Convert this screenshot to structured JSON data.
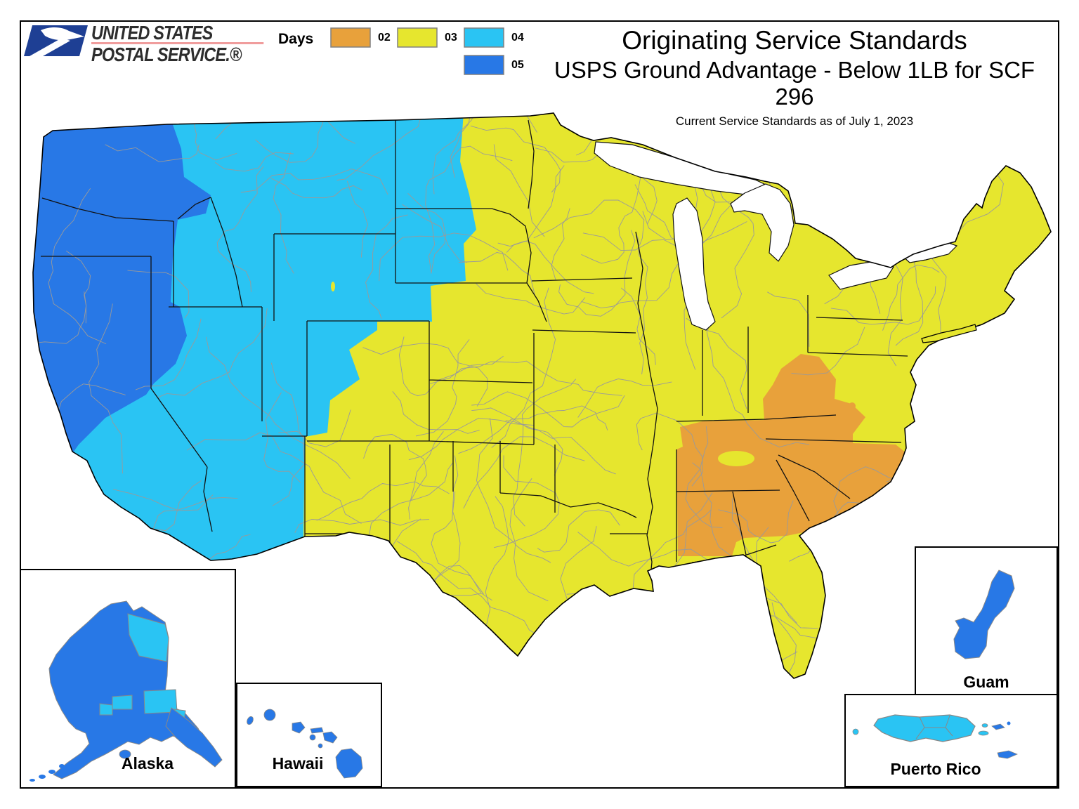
{
  "logo": {
    "line1": "UNITED STATES",
    "line2": "POSTAL SERVICE.®"
  },
  "header": {
    "title": "Originating Service Standards",
    "subtitle": "USPS Ground Advantage - Below 1LB for SCF 296",
    "date_note": "Current Service Standards as of July 1, 2023"
  },
  "legend": {
    "title": "Days",
    "items": [
      {
        "label": "02",
        "color": "#E8A13B"
      },
      {
        "label": "03",
        "color": "#E6E62E"
      },
      {
        "label": "04",
        "color": "#2AC4F3"
      },
      {
        "label": "05",
        "color": "#2878E6"
      }
    ]
  },
  "map": {
    "colors": {
      "day02_orange": "#E8A13B",
      "day03_yellow": "#E6E62E",
      "day04_cyan": "#2AC4F3",
      "day05_blue": "#2878E6",
      "zip3_boundary_gray": "#9A9A9A",
      "state_boundary_black": "#111111"
    }
  },
  "insets": {
    "alaska": {
      "label": "Alaska"
    },
    "hawaii": {
      "label": "Hawaii"
    },
    "guam": {
      "label": "Guam"
    },
    "puerto_rico": {
      "label": "Puerto Rico"
    }
  }
}
